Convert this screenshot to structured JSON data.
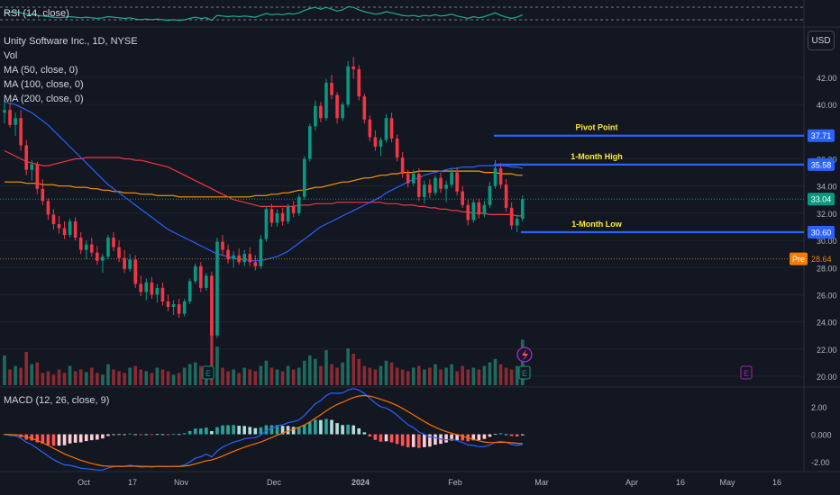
{
  "header": {
    "symbol": "Unity Software Inc., 1D, NYSE",
    "indicators": [
      "Vol",
      "MA (50, close, 0)",
      "MA (100, close, 0)",
      "MA (200, close, 0)"
    ],
    "rsi_label": "RSI (14, close)",
    "macd_label": "MACD (12, 26, close, 9)",
    "currency_button": "USD"
  },
  "colors": {
    "background": "#131722",
    "up": "#22ab94",
    "down": "#f23645",
    "candle_up": "#089981",
    "candle_down": "#f23645",
    "ma50": "#2962ff",
    "ma100": "#f23645",
    "ma200": "#ff9800",
    "level_line": "#2962ff",
    "level_text": "#ffeb3b",
    "premarket": "#f57c00"
  },
  "chart_data": {
    "type": "candlestick",
    "ylim": [
      19.2,
      44.6
    ],
    "y_ticks": [
      {
        "value": 42.0,
        "label": "42.00"
      },
      {
        "value": 40.0,
        "label": "40.00"
      },
      {
        "value": 36.0,
        "label": "36.00"
      },
      {
        "value": 34.0,
        "label": "34.00"
      },
      {
        "value": 32.0,
        "label": "32.00"
      },
      {
        "value": 30.0,
        "label": "30.00"
      },
      {
        "value": 28.0,
        "label": "28.00"
      },
      {
        "value": 26.0,
        "label": "26.00"
      },
      {
        "value": 24.0,
        "label": "24.00"
      },
      {
        "value": 22.0,
        "label": "22.00"
      },
      {
        "value": 20.0,
        "label": "20.00"
      }
    ],
    "x_ticks": [
      "Oct",
      "17",
      "Nov",
      "Dec",
      "2024",
      "Feb",
      "Mar",
      "Apr",
      "16",
      "May",
      "16"
    ],
    "levels": [
      {
        "name": "Pivot Point",
        "value": 37.71,
        "label": "37.71"
      },
      {
        "name": "1-Month High",
        "value": 35.58,
        "label": "35.58"
      },
      {
        "name": "1-Month Low",
        "value": 30.6,
        "label": "30.60"
      }
    ],
    "last_price": {
      "value": 33.04,
      "label": "33.04"
    },
    "premarket": {
      "tag": "Pre",
      "value": 28.64,
      "label": "28.64"
    },
    "candles": [
      [
        39.4,
        40.3,
        38.6,
        39.6
      ],
      [
        39.6,
        40.1,
        38.3,
        38.5
      ],
      [
        38.5,
        39.4,
        37.7,
        39.0
      ],
      [
        39.0,
        39.6,
        36.6,
        37.0
      ],
      [
        37.0,
        37.4,
        34.8,
        35.2
      ],
      [
        35.2,
        35.9,
        34.4,
        35.6
      ],
      [
        35.6,
        35.8,
        33.4,
        33.8
      ],
      [
        33.8,
        34.5,
        32.6,
        32.9
      ],
      [
        32.9,
        33.1,
        31.5,
        31.9
      ],
      [
        31.9,
        32.3,
        30.8,
        31.2
      ],
      [
        31.2,
        31.8,
        30.5,
        30.9
      ],
      [
        30.9,
        31.4,
        30.1,
        30.4
      ],
      [
        30.4,
        31.6,
        30.2,
        31.4
      ],
      [
        31.4,
        31.7,
        30.0,
        30.2
      ],
      [
        30.2,
        30.6,
        29.0,
        29.3
      ],
      [
        29.3,
        30.0,
        28.6,
        29.7
      ],
      [
        29.7,
        30.2,
        28.8,
        29.1
      ],
      [
        29.1,
        29.6,
        28.2,
        28.5
      ],
      [
        28.5,
        29.0,
        27.6,
        28.8
      ],
      [
        28.8,
        30.4,
        28.6,
        30.2
      ],
      [
        30.2,
        30.6,
        29.2,
        29.5
      ],
      [
        29.5,
        30.0,
        28.4,
        28.7
      ],
      [
        28.7,
        29.3,
        27.6,
        27.9
      ],
      [
        27.9,
        29.0,
        27.7,
        28.6
      ],
      [
        28.6,
        28.9,
        26.5,
        26.8
      ],
      [
        26.8,
        27.4,
        25.9,
        26.2
      ],
      [
        26.2,
        27.2,
        25.6,
        26.9
      ],
      [
        26.9,
        27.3,
        25.7,
        26.0
      ],
      [
        26.0,
        26.8,
        25.4,
        26.5
      ],
      [
        26.5,
        26.9,
        25.2,
        25.5
      ],
      [
        25.5,
        26.0,
        24.8,
        25.1
      ],
      [
        25.1,
        25.6,
        24.5,
        25.3
      ],
      [
        25.3,
        25.7,
        24.3,
        24.6
      ],
      [
        24.6,
        25.7,
        24.4,
        25.5
      ],
      [
        25.5,
        27.2,
        25.3,
        27.0
      ],
      [
        27.0,
        28.3,
        26.8,
        28.1
      ],
      [
        28.1,
        28.4,
        26.2,
        26.5
      ],
      [
        26.5,
        27.6,
        26.3,
        27.4
      ],
      [
        27.4,
        27.7,
        20.8,
        23.0
      ],
      [
        23.0,
        30.2,
        22.8,
        29.9
      ],
      [
        29.9,
        30.4,
        28.9,
        29.3
      ],
      [
        29.3,
        29.7,
        28.3,
        28.6
      ],
      [
        28.6,
        29.2,
        28.0,
        28.9
      ],
      [
        28.9,
        29.4,
        28.2,
        28.4
      ],
      [
        28.4,
        29.3,
        28.1,
        29.0
      ],
      [
        29.0,
        29.5,
        28.1,
        28.4
      ],
      [
        28.4,
        28.9,
        27.8,
        28.1
      ],
      [
        28.1,
        30.4,
        27.9,
        30.1
      ],
      [
        30.1,
        32.5,
        29.9,
        32.3
      ],
      [
        32.3,
        32.7,
        31.0,
        31.3
      ],
      [
        31.3,
        32.3,
        31.0,
        32.0
      ],
      [
        32.0,
        32.4,
        31.1,
        31.4
      ],
      [
        31.4,
        32.7,
        31.2,
        32.5
      ],
      [
        32.5,
        32.9,
        31.7,
        32.0
      ],
      [
        32.0,
        33.4,
        31.8,
        33.2
      ],
      [
        33.2,
        36.2,
        33.0,
        36.0
      ],
      [
        36.0,
        38.6,
        35.8,
        38.4
      ],
      [
        38.4,
        40.3,
        38.1,
        39.9
      ],
      [
        39.9,
        40.2,
        38.7,
        39.0
      ],
      [
        39.0,
        41.9,
        38.8,
        41.6
      ],
      [
        41.6,
        42.2,
        40.4,
        40.7
      ],
      [
        40.7,
        40.9,
        38.6,
        39.0
      ],
      [
        39.0,
        40.2,
        38.8,
        40.0
      ],
      [
        40.0,
        43.2,
        39.8,
        42.8
      ],
      [
        42.8,
        43.5,
        41.9,
        42.6
      ],
      [
        42.6,
        42.9,
        40.3,
        40.6
      ],
      [
        40.6,
        40.8,
        38.6,
        38.9
      ],
      [
        38.9,
        39.2,
        37.3,
        37.6
      ],
      [
        37.6,
        38.1,
        36.6,
        36.9
      ],
      [
        36.9,
        37.6,
        36.2,
        37.4
      ],
      [
        37.4,
        39.3,
        37.2,
        39.0
      ],
      [
        39.0,
        39.4,
        37.2,
        37.5
      ],
      [
        37.5,
        37.8,
        35.8,
        36.1
      ],
      [
        36.1,
        36.5,
        34.6,
        34.9
      ],
      [
        34.9,
        35.2,
        33.9,
        34.2
      ],
      [
        34.2,
        35.2,
        34.0,
        34.9
      ],
      [
        34.9,
        35.3,
        32.9,
        33.2
      ],
      [
        33.2,
        34.4,
        32.7,
        34.1
      ],
      [
        34.1,
        34.5,
        33.1,
        33.5
      ],
      [
        33.5,
        34.8,
        33.3,
        34.6
      ],
      [
        34.6,
        35.0,
        33.5,
        33.8
      ],
      [
        33.8,
        34.4,
        32.8,
        34.1
      ],
      [
        34.1,
        35.3,
        33.9,
        35.0
      ],
      [
        35.0,
        35.4,
        33.3,
        33.6
      ],
      [
        33.6,
        34.0,
        32.4,
        32.6
      ],
      [
        32.6,
        33.0,
        31.1,
        31.5
      ],
      [
        31.5,
        33.0,
        31.3,
        32.8
      ],
      [
        32.8,
        33.1,
        31.6,
        31.9
      ],
      [
        31.9,
        32.9,
        31.7,
        32.6
      ],
      [
        32.6,
        34.3,
        32.4,
        34.0
      ],
      [
        34.0,
        35.9,
        33.8,
        35.3
      ],
      [
        35.3,
        35.7,
        33.8,
        34.1
      ],
      [
        34.1,
        34.5,
        32.1,
        32.4
      ],
      [
        32.4,
        32.8,
        30.8,
        31.1
      ],
      [
        31.1,
        31.9,
        30.6,
        31.6
      ],
      [
        31.6,
        33.3,
        31.4,
        33.04
      ]
    ],
    "volume": [
      34,
      18,
      22,
      20,
      38,
      24,
      26,
      14,
      16,
      12,
      18,
      14,
      22,
      16,
      18,
      15,
      20,
      14,
      12,
      24,
      18,
      16,
      14,
      20,
      22,
      18,
      16,
      14,
      20,
      18,
      16,
      12,
      14,
      20,
      24,
      26,
      22,
      18,
      72,
      44,
      20,
      16,
      18,
      14,
      20,
      18,
      16,
      22,
      28,
      20,
      18,
      16,
      22,
      18,
      20,
      28,
      34,
      30,
      22,
      40,
      24,
      20,
      26,
      42,
      36,
      30,
      22,
      20,
      18,
      22,
      28,
      26,
      20,
      18,
      16,
      20,
      22,
      18,
      20,
      24,
      18,
      20,
      24,
      16,
      22,
      18,
      20,
      18,
      22,
      26,
      30,
      24,
      20,
      18,
      22,
      52
    ],
    "ma50": [
      40.2,
      40.1,
      40.0,
      39.8,
      39.6,
      39.4,
      39.1,
      38.8,
      38.5,
      38.1,
      37.7,
      37.3,
      36.9,
      36.5,
      36.1,
      35.7,
      35.3,
      34.9,
      34.5,
      34.1,
      33.8,
      33.5,
      33.2,
      32.9,
      32.6,
      32.3,
      32.0,
      31.7,
      31.4,
      31.1,
      30.8,
      30.6,
      30.4,
      30.2,
      30.0,
      29.8,
      29.6,
      29.4,
      29.2,
      29.0,
      28.9,
      28.8,
      28.7,
      28.6,
      28.6,
      28.5,
      28.5,
      28.5,
      28.6,
      28.7,
      28.8,
      29.0,
      29.2,
      29.5,
      29.8,
      30.1,
      30.4,
      30.7,
      31.0,
      31.2,
      31.4,
      31.6,
      31.8,
      32.0,
      32.2,
      32.4,
      32.6,
      32.8,
      33.0,
      33.2,
      33.5,
      33.7,
      33.9,
      34.1,
      34.3,
      34.5,
      34.6,
      34.8,
      34.9,
      35.0,
      35.1,
      35.2,
      35.3,
      35.3,
      35.4,
      35.4,
      35.4,
      35.5,
      35.5,
      35.5,
      35.5,
      35.5,
      35.5,
      35.4,
      35.4,
      35.3
    ],
    "ma100": [
      36.6,
      36.4,
      36.2,
      36.0,
      35.8,
      35.7,
      35.6,
      35.5,
      35.5,
      35.6,
      35.7,
      35.8,
      35.9,
      36.0,
      36.0,
      36.1,
      36.1,
      36.1,
      36.1,
      36.1,
      36.1,
      36.1,
      36.0,
      36.0,
      35.9,
      35.9,
      35.8,
      35.7,
      35.6,
      35.5,
      35.4,
      35.2,
      35.0,
      34.8,
      34.6,
      34.4,
      34.2,
      34.0,
      33.8,
      33.6,
      33.4,
      33.2,
      33.0,
      32.9,
      32.8,
      32.7,
      32.6,
      32.5,
      32.5,
      32.5,
      32.5,
      32.5,
      32.5,
      32.5,
      32.6,
      32.6,
      32.6,
      32.7,
      32.7,
      32.7,
      32.7,
      32.8,
      32.8,
      32.8,
      32.8,
      32.8,
      32.8,
      32.8,
      32.8,
      32.8,
      32.7,
      32.7,
      32.7,
      32.6,
      32.6,
      32.6,
      32.5,
      32.5,
      32.4,
      32.4,
      32.3,
      32.3,
      32.2,
      32.2,
      32.1,
      32.1,
      32.0,
      32.0,
      32.0,
      31.9,
      31.9,
      31.9,
      31.9,
      31.9,
      31.8,
      31.8
    ],
    "ma200": [
      34.3,
      34.3,
      34.3,
      34.3,
      34.2,
      34.2,
      34.2,
      34.1,
      34.1,
      34.1,
      34.0,
      34.0,
      34.0,
      33.9,
      33.9,
      33.9,
      33.8,
      33.8,
      33.7,
      33.7,
      33.6,
      33.6,
      33.5,
      33.5,
      33.5,
      33.4,
      33.4,
      33.4,
      33.3,
      33.3,
      33.3,
      33.3,
      33.2,
      33.2,
      33.2,
      33.2,
      33.2,
      33.2,
      33.2,
      33.2,
      33.2,
      33.2,
      33.2,
      33.2,
      33.2,
      33.2,
      33.3,
      33.3,
      33.3,
      33.4,
      33.4,
      33.5,
      33.5,
      33.6,
      33.7,
      33.7,
      33.8,
      33.9,
      33.9,
      34.0,
      34.1,
      34.2,
      34.3,
      34.3,
      34.4,
      34.5,
      34.6,
      34.6,
      34.7,
      34.8,
      34.8,
      34.9,
      34.9,
      35.0,
      35.0,
      35.0,
      35.1,
      35.1,
      35.1,
      35.1,
      35.1,
      35.1,
      35.1,
      35.1,
      35.1,
      35.1,
      35.1,
      35.1,
      35.0,
      35.0,
      35.0,
      34.9,
      34.9,
      34.9,
      34.8,
      34.8
    ],
    "rsi": [
      55,
      56,
      58,
      54,
      50,
      48,
      46,
      44,
      42,
      40,
      38,
      40,
      42,
      40,
      38,
      40,
      38,
      36,
      38,
      42,
      40,
      38,
      36,
      38,
      34,
      32,
      34,
      32,
      34,
      32,
      30,
      32,
      30,
      32,
      36,
      40,
      36,
      38,
      30,
      46,
      44,
      42,
      44,
      42,
      44,
      42,
      40,
      46,
      52,
      48,
      50,
      48,
      52,
      50,
      54,
      62,
      68,
      72,
      66,
      72,
      66,
      60,
      64,
      74,
      72,
      64,
      58,
      54,
      50,
      52,
      58,
      54,
      50,
      46,
      44,
      46,
      42,
      46,
      44,
      48,
      44,
      46,
      50,
      44,
      40,
      36,
      42,
      38,
      42,
      48,
      54,
      46,
      40,
      36,
      40,
      48
    ],
    "macd_y_ticks": [
      {
        "value": 2.0,
        "label": "2.00"
      },
      {
        "value": 0.0,
        "label": "0.000"
      },
      {
        "value": -2.0,
        "label": "-2.00"
      }
    ],
    "macd_ylim": [
      -2.6,
      3.2
    ]
  }
}
